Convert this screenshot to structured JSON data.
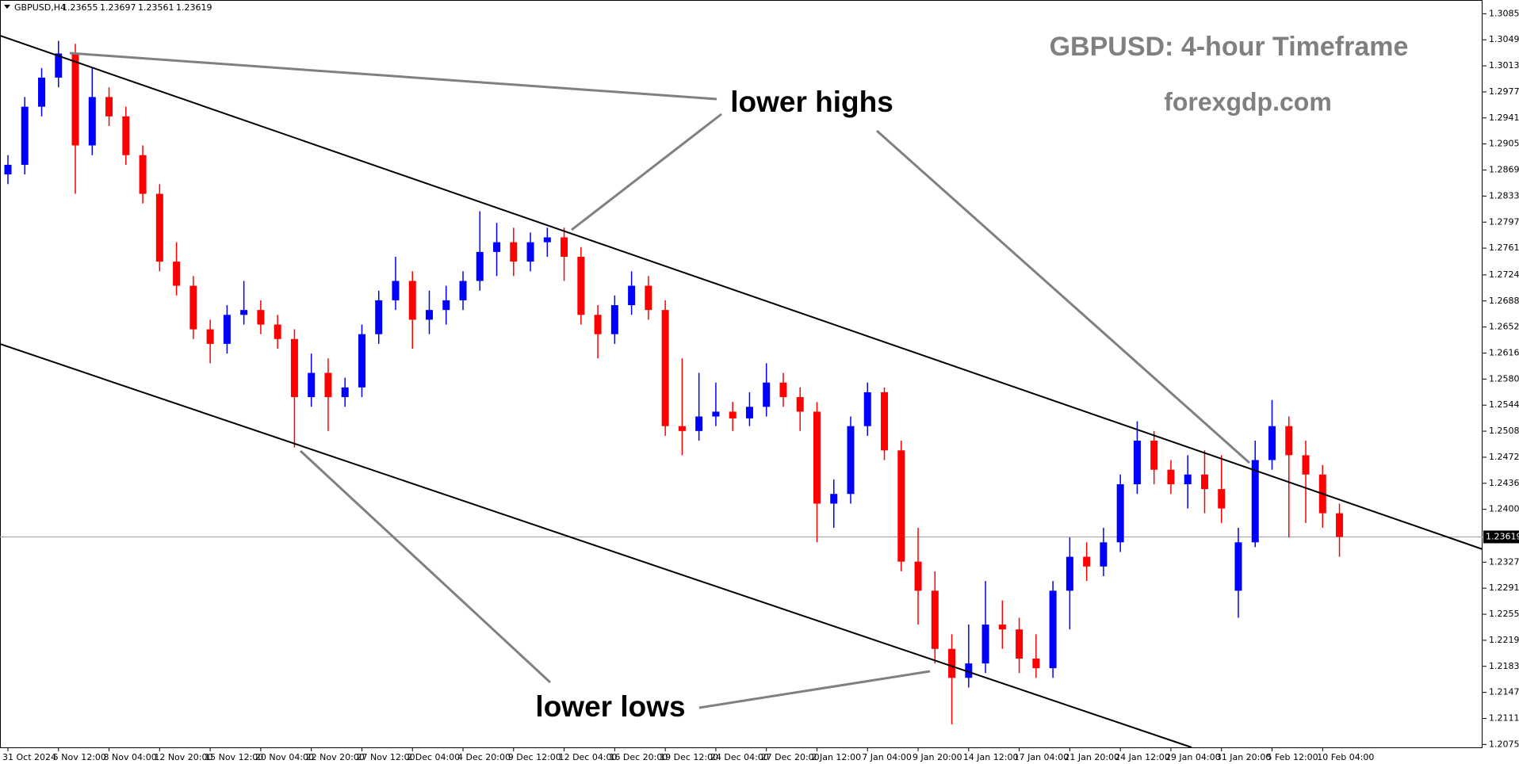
{
  "chart_data": {
    "type": "candlestick",
    "symbol": "GBPUSD,H4",
    "info": [
      1.23655,
      1.23697,
      1.23561,
      1.23619
    ],
    "title": "GBPUSD: 4-hour Timeframe",
    "subtitle": "forexgdp.com",
    "annotations": [
      "lower highs",
      "lower lows"
    ],
    "up_color": "#0000ff",
    "down_color": "#ff0000",
    "current_price": 1.23619,
    "ylim": [
      1.2071,
      1.3104
    ],
    "yticks": [
      {
        "value": 1.3085,
        "label": "1.30850"
      },
      {
        "value": 1.3049,
        "label": "1.30490"
      },
      {
        "value": 1.3013,
        "label": "1.30130"
      },
      {
        "value": 1.2977,
        "label": "1.29770"
      },
      {
        "value": 1.2941,
        "label": "1.29410"
      },
      {
        "value": 1.2905,
        "label": "1.29050"
      },
      {
        "value": 1.2869,
        "label": "1.28690"
      },
      {
        "value": 1.2833,
        "label": "1.28330"
      },
      {
        "value": 1.2797,
        "label": "1.27970"
      },
      {
        "value": 1.2761,
        "label": "1.27610"
      },
      {
        "value": 1.2724,
        "label": "1.27240"
      },
      {
        "value": 1.2688,
        "label": "1.26880"
      },
      {
        "value": 1.2652,
        "label": "1.26520"
      },
      {
        "value": 1.2616,
        "label": "1.26160"
      },
      {
        "value": 1.258,
        "label": "1.25800"
      },
      {
        "value": 1.2544,
        "label": "1.25440"
      },
      {
        "value": 1.2508,
        "label": "1.25080"
      },
      {
        "value": 1.2472,
        "label": "1.24720"
      },
      {
        "value": 1.2436,
        "label": "1.24360"
      },
      {
        "value": 1.24,
        "label": "1.24000"
      },
      {
        "value": 1.2327,
        "label": "1.23270"
      },
      {
        "value": 1.2291,
        "label": "1.22910"
      },
      {
        "value": 1.2255,
        "label": "1.22550"
      },
      {
        "value": 1.2219,
        "label": "1.22190"
      },
      {
        "value": 1.2183,
        "label": "1.21830"
      },
      {
        "value": 1.2147,
        "label": "1.21470"
      },
      {
        "value": 1.2111,
        "label": "1.21110"
      },
      {
        "value": 1.2075,
        "label": "1.20750"
      }
    ],
    "categories": [
      "31 Oct 2024",
      null,
      null,
      "5 Nov 12:00",
      null,
      null,
      "8 Nov 04:00",
      null,
      null,
      "12 Nov 20:00",
      null,
      null,
      "15 Nov 12:00",
      null,
      null,
      "20 Nov 04:00",
      null,
      null,
      "22 Nov 20:00",
      null,
      null,
      "27 Nov 12:00",
      null,
      null,
      "2 Dec 04:00",
      null,
      null,
      "4 Dec 20:00",
      null,
      null,
      "9 Dec 12:00",
      null,
      null,
      "12 Dec 04:00",
      null,
      null,
      "16 Dec 20:00",
      null,
      null,
      "19 Dec 12:00",
      null,
      null,
      "24 Dec 04:00",
      null,
      null,
      "27 Dec 20:00",
      null,
      null,
      "2 Jan 12:00",
      null,
      null,
      "7 Jan 04:00",
      null,
      null,
      "9 Jan 20:00",
      null,
      null,
      "14 Jan 12:00",
      null,
      null,
      "17 Jan 04:00",
      null,
      null,
      "21 Jan 20:00",
      null,
      null,
      "24 Jan 12:00",
      null,
      null,
      "29 Jan 04:00",
      null,
      null,
      "31 Jan 20:00",
      null,
      null,
      "5 Feb 12:00",
      null,
      null,
      "10 Feb 04:00",
      null
    ],
    "open": [
      1.28629,
      1.28762,
      1.29565,
      1.29967,
      1.30301,
      1.2903,
      1.29699,
      1.29431,
      1.28896,
      1.28361,
      1.27424,
      1.2709,
      1.26488,
      1.26287,
      1.26688,
      1.26755,
      1.26554,
      1.26354,
      1.25551,
      1.25886,
      1.25551,
      1.25685,
      1.26421,
      1.26889,
      1.27157,
      1.26621,
      1.26755,
      1.26889,
      1.27157,
      1.27558,
      1.27692,
      1.27424,
      1.27692,
      1.27759,
      1.27491,
      1.26688,
      1.26421,
      1.26822,
      1.2709,
      1.26755,
      1.2515,
      1.25083,
      1.25283,
      1.2535,
      1.25257,
      1.25417,
      1.25752,
      1.25551,
      1.2535,
      1.24079,
      1.24213,
      1.2515,
      1.25618,
      1.24815,
      1.23277,
      1.22875,
      1.22071,
      1.21671,
      1.2187,
      1.22407,
      1.2234,
      1.21937,
      1.21804,
      1.22875,
      1.23344,
      1.2321,
      1.23544,
      1.24347,
      1.24949,
      1.24547,
      1.24347,
      1.24481,
      1.2428,
      1.22875,
      1.23544,
      1.24681,
      1.2515,
      1.24748,
      1.24481,
      1.23946
    ],
    "high": [
      1.28896,
      1.29699,
      1.301,
      1.30475,
      1.30435,
      1.301,
      1.29833,
      1.29565,
      1.2903,
      1.28495,
      1.27692,
      1.27224,
      1.26621,
      1.26822,
      1.27157,
      1.26889,
      1.26688,
      1.26488,
      1.26153,
      1.26086,
      1.25819,
      1.26554,
      1.27023,
      1.27491,
      1.2729,
      1.27023,
      1.2709,
      1.2729,
      1.2812,
      1.2796,
      1.27893,
      1.27826,
      1.27893,
      1.27893,
      1.27625,
      1.26822,
      1.26956,
      1.2729,
      1.27224,
      1.26889,
      1.26086,
      1.25886,
      1.25752,
      1.25484,
      1.25618,
      1.26019,
      1.25886,
      1.25685,
      1.25484,
      1.24414,
      1.25283,
      1.25752,
      1.25685,
      1.24949,
      1.23745,
      1.23143,
      1.22273,
      1.22407,
      1.23009,
      1.22741,
      1.22501,
      1.22273,
      1.23009,
      1.23611,
      1.23544,
      1.23745,
      1.24481,
      1.25217,
      1.25083,
      1.24681,
      1.24748,
      1.24815,
      1.24748,
      1.23745,
      1.24949,
      1.25511,
      1.25283,
      1.24949,
      1.24613,
      1.24079
    ],
    "low": [
      1.28495,
      1.28629,
      1.29431,
      1.29833,
      1.28361,
      1.28896,
      1.29298,
      1.28762,
      1.28227,
      1.2729,
      1.26956,
      1.26354,
      1.26019,
      1.26153,
      1.26554,
      1.26421,
      1.2622,
      1.24855,
      1.25417,
      1.25083,
      1.25417,
      1.25551,
      1.26287,
      1.26755,
      1.2622,
      1.26421,
      1.26554,
      1.26755,
      1.27023,
      1.27224,
      1.27224,
      1.2729,
      1.27491,
      1.27157,
      1.26554,
      1.26086,
      1.26287,
      1.26688,
      1.26621,
      1.25016,
      1.24748,
      1.24949,
      1.2515,
      1.25083,
      1.2515,
      1.25283,
      1.25417,
      1.25083,
      1.23544,
      1.23745,
      1.24079,
      1.25016,
      1.24681,
      1.23143,
      1.22407,
      1.2187,
      1.21029,
      1.21537,
      1.21737,
      1.22071,
      1.21737,
      1.21671,
      1.21671,
      1.2234,
      1.23009,
      1.23076,
      1.2341,
      1.24213,
      1.24347,
      1.24213,
      1.24012,
      1.23946,
      1.23812,
      1.22501,
      1.23477,
      1.24547,
      1.23611,
      1.23812,
      1.23745,
      1.23344
    ],
    "close": [
      1.28762,
      1.29565,
      1.29967,
      1.30301,
      1.2903,
      1.29699,
      1.29431,
      1.28896,
      1.28361,
      1.27424,
      1.2709,
      1.26488,
      1.26287,
      1.26688,
      1.26755,
      1.26554,
      1.26354,
      1.25551,
      1.25886,
      1.25551,
      1.25685,
      1.26421,
      1.26889,
      1.27157,
      1.26621,
      1.26755,
      1.26889,
      1.27157,
      1.27558,
      1.27692,
      1.27424,
      1.27692,
      1.27759,
      1.27491,
      1.26688,
      1.26421,
      1.26822,
      1.2709,
      1.26755,
      1.2515,
      1.25083,
      1.25283,
      1.2535,
      1.25257,
      1.25417,
      1.25752,
      1.25551,
      1.2535,
      1.24079,
      1.24213,
      1.2515,
      1.25618,
      1.24815,
      1.23277,
      1.22875,
      1.22071,
      1.21671,
      1.2187,
      1.22407,
      1.2234,
      1.21937,
      1.21804,
      1.22875,
      1.23344,
      1.2321,
      1.23544,
      1.24347,
      1.24949,
      1.24547,
      1.24347,
      1.24481,
      1.2428,
      1.24012,
      1.23544,
      1.24681,
      1.2515,
      1.24748,
      1.24481,
      1.23946,
      1.23619
    ]
  }
}
